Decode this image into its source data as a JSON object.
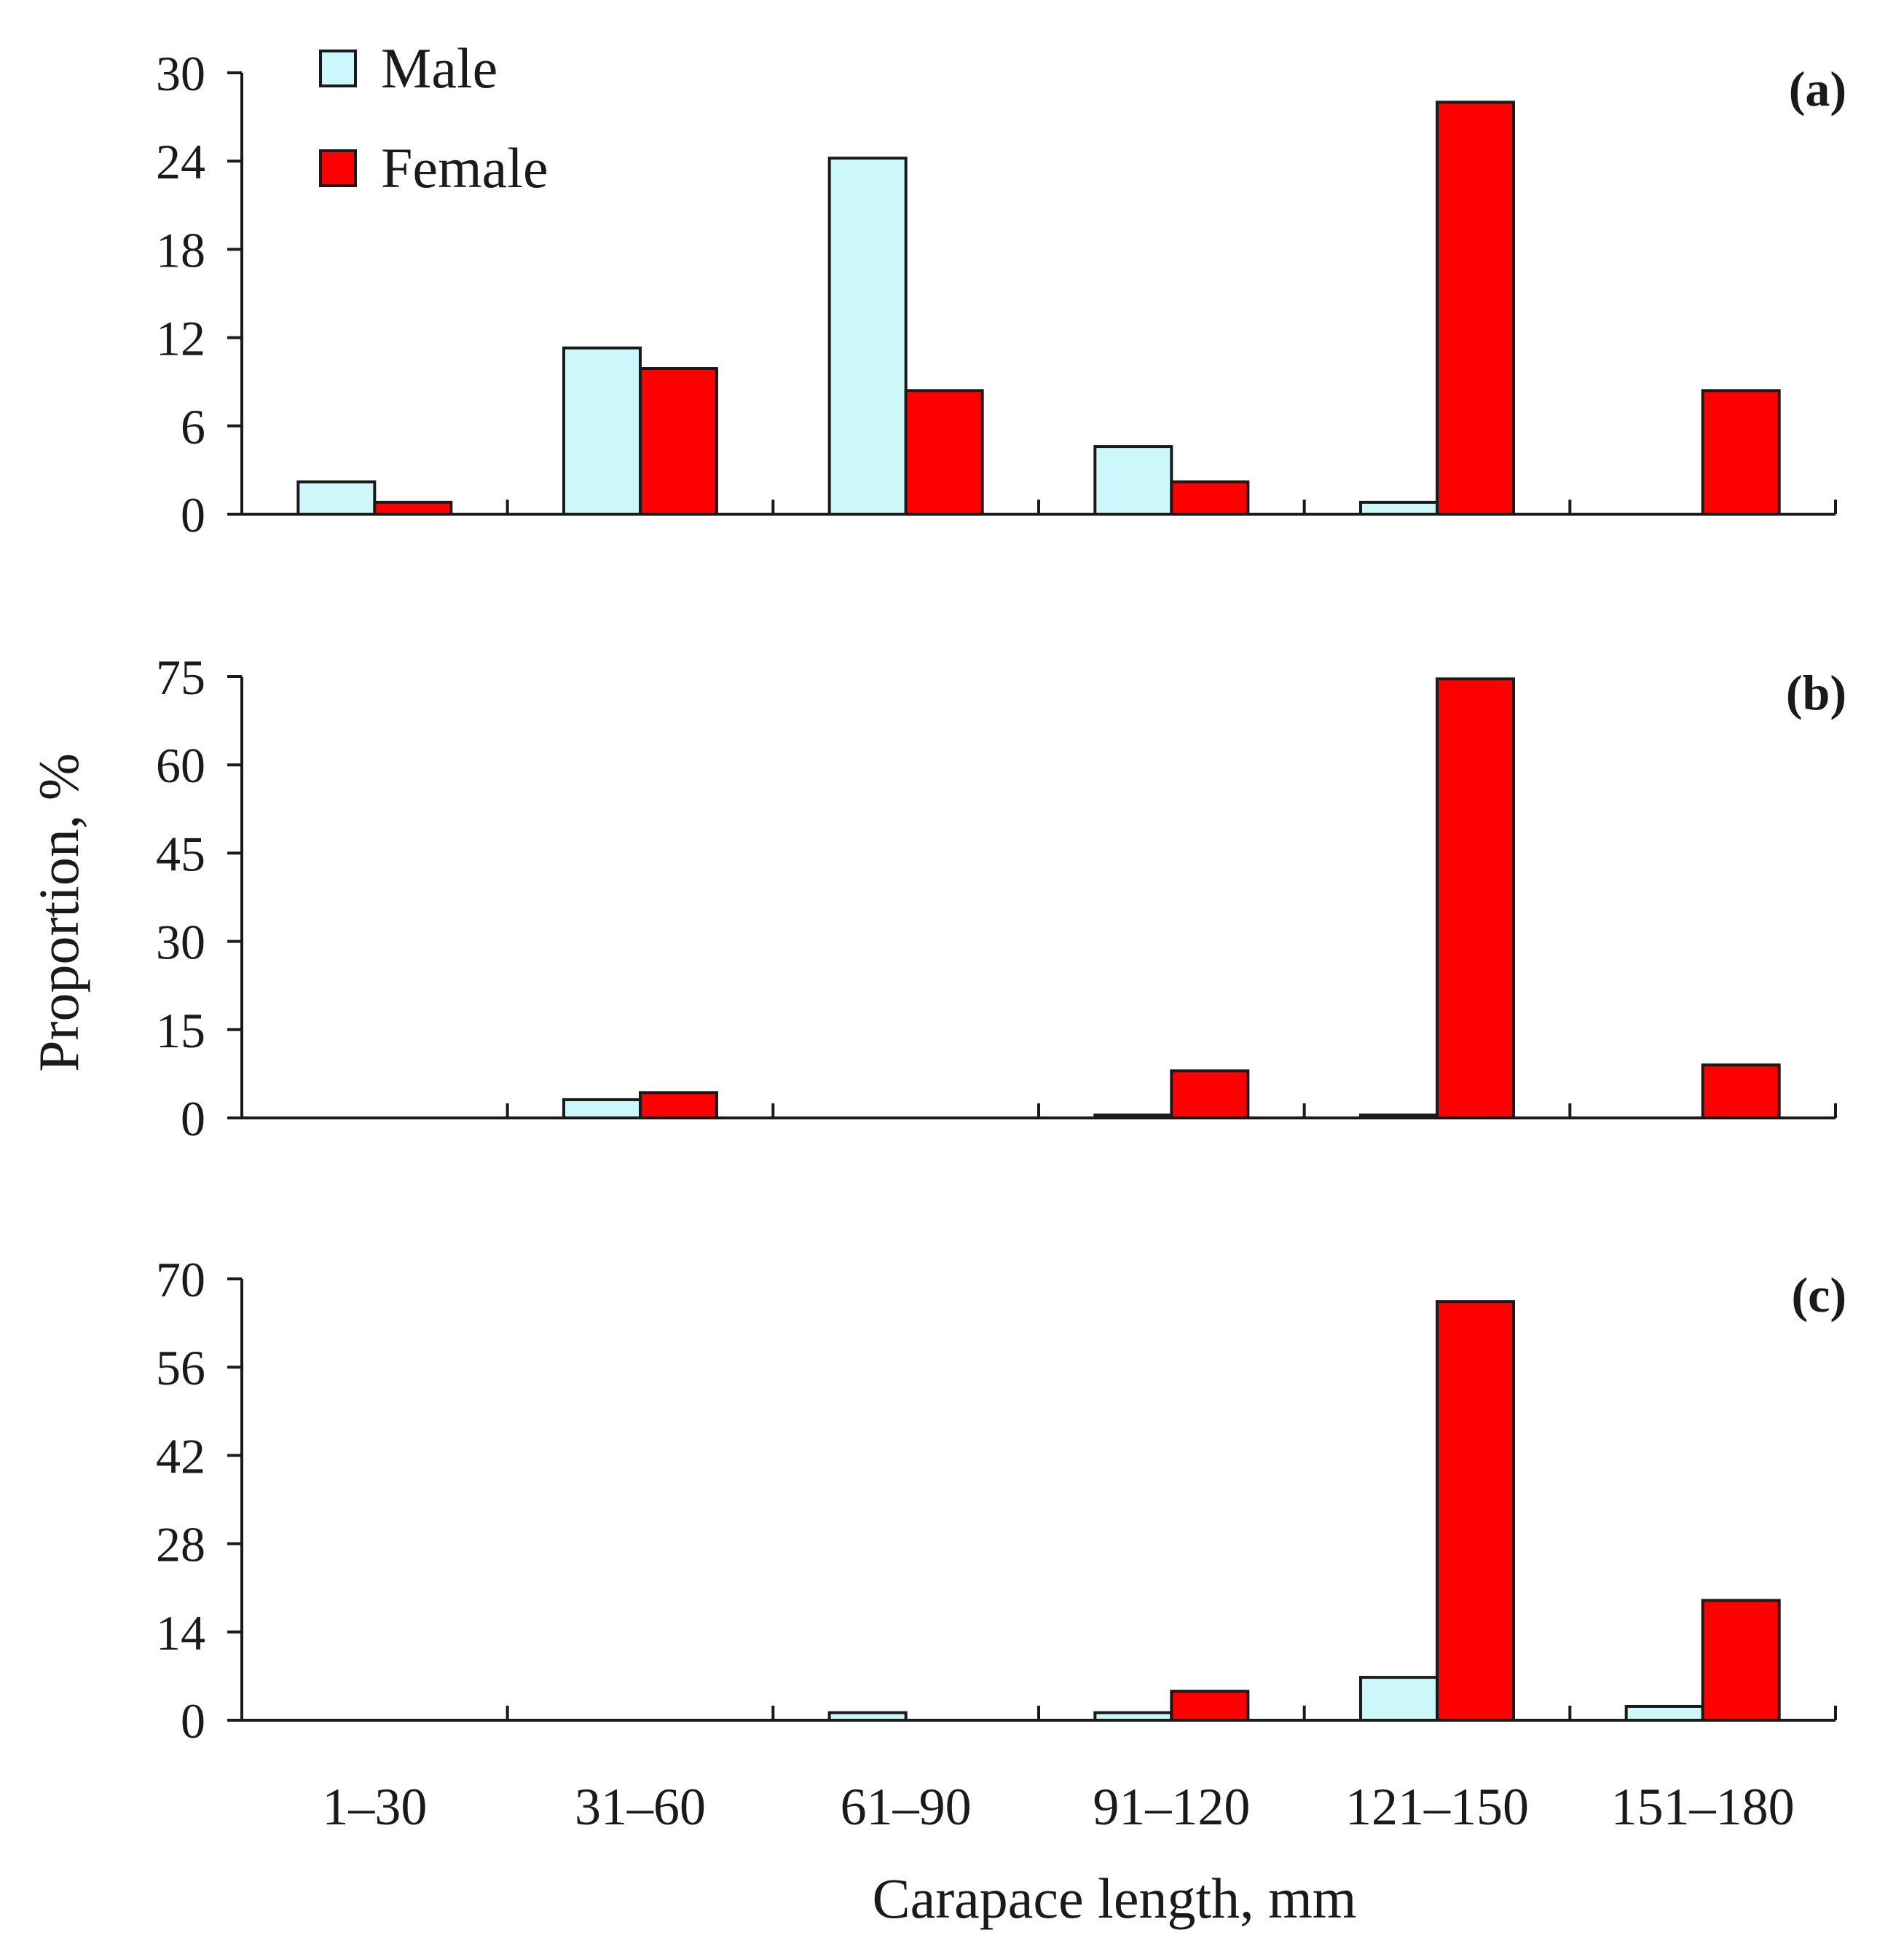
{
  "chart_data": {
    "type": "bar",
    "xlabel": "Carapace length, mm",
    "ylabel": "Proportion, %",
    "categories": [
      "1–30",
      "31–60",
      "61–90",
      "91–120",
      "121–150",
      "151–180"
    ],
    "legend": {
      "placement": "top-left",
      "entries": [
        {
          "name": "Male",
          "color": "#ccf8fb"
        },
        {
          "name": "Female",
          "color": "#ff0000"
        }
      ]
    },
    "panels": [
      {
        "label": "(a)",
        "ylim": [
          0,
          30
        ],
        "yticks": [
          "0",
          "6",
          "12",
          "18",
          "24",
          "30"
        ],
        "series": [
          {
            "name": "Male",
            "values": [
              2.2,
              11.3,
              24.2,
              4.6,
              0.8,
              0
            ]
          },
          {
            "name": "Female",
            "values": [
              0.8,
              9.9,
              8.4,
              2.2,
              28.0,
              8.4
            ]
          }
        ]
      },
      {
        "label": "(b)",
        "ylim": [
          0,
          75
        ],
        "yticks": [
          "0",
          "15",
          "30",
          "45",
          "60",
          "75"
        ],
        "series": [
          {
            "name": "Male",
            "values": [
              0,
              3.1,
              0,
              0.5,
              0.5,
              0
            ]
          },
          {
            "name": "Female",
            "values": [
              0,
              4.3,
              0,
              8.0,
              74.6,
              9.0
            ]
          }
        ]
      },
      {
        "label": "(c)",
        "ylim": [
          0,
          70
        ],
        "yticks": [
          "0",
          "14",
          "28",
          "42",
          "56",
          "70"
        ],
        "series": [
          {
            "name": "Male",
            "values": [
              0,
              0,
              1.2,
              1.2,
              6.8,
              2.2
            ]
          },
          {
            "name": "Female",
            "values": [
              0,
              0,
              0,
              4.6,
              66.4,
              19.0
            ]
          }
        ]
      }
    ]
  }
}
